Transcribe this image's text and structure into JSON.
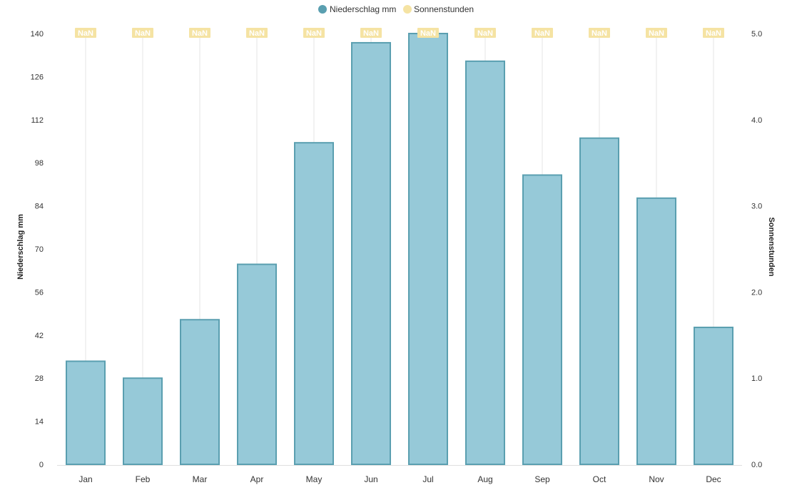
{
  "chart_data": {
    "type": "bar",
    "categories": [
      "Jan",
      "Feb",
      "Mar",
      "Apr",
      "May",
      "Jun",
      "Jul",
      "Aug",
      "Sep",
      "Oct",
      "Nov",
      "Dec"
    ],
    "series": [
      {
        "name": "Niederschlag mm",
        "axis": "left",
        "color": "#96c9d8",
        "border_color": "#5a9fb0",
        "legend_color": "#5a9fb0",
        "values": [
          33.5,
          28,
          47,
          65,
          104.5,
          137,
          140,
          131,
          94,
          106,
          86.5,
          44.5
        ]
      },
      {
        "name": "Sonnenstunden",
        "axis": "right",
        "color": "#f5e3a3",
        "legend_color": "#f5e3a3",
        "values": [
          null,
          null,
          null,
          null,
          null,
          null,
          null,
          null,
          null,
          null,
          null,
          null
        ],
        "data_labels": [
          "NaN",
          "NaN",
          "NaN",
          "NaN",
          "NaN",
          "NaN",
          "NaN",
          "NaN",
          "NaN",
          "NaN",
          "NaN",
          "NaN"
        ]
      }
    ],
    "y_left": {
      "label": "Niederschlag mm",
      "range": [
        0,
        140
      ],
      "ticks": [
        "0",
        "14",
        "28",
        "42",
        "56",
        "70",
        "84",
        "98",
        "112",
        "126",
        "140"
      ]
    },
    "y_right": {
      "label": "Sonnenstunden",
      "range": [
        0,
        5
      ],
      "ticks": [
        "0.0",
        "1.0",
        "2.0",
        "3.0",
        "4.0",
        "5.0"
      ]
    },
    "grid": "vertical lines at categories",
    "legend_position": "top-center"
  }
}
